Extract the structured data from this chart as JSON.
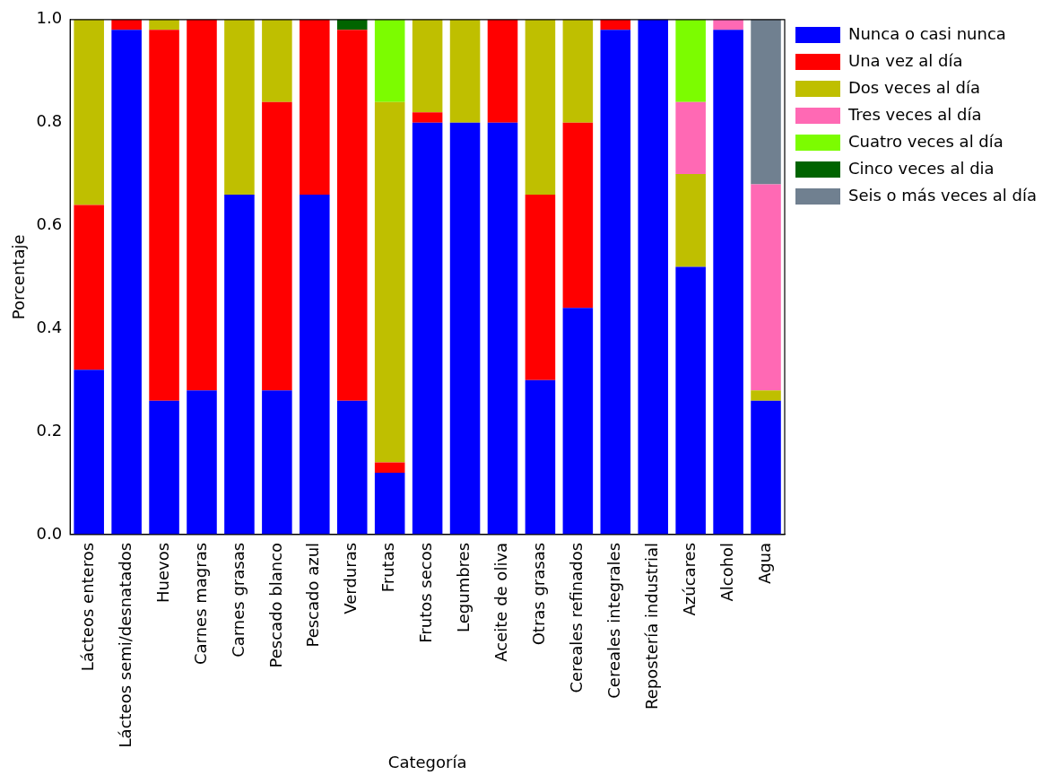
{
  "chart_data": {
    "type": "bar",
    "stacked": true,
    "xlabel": "Categoría",
    "ylabel": "Porcentaje",
    "categories": [
      "Lácteos enteros",
      "Lácteos semi/desnatados",
      "Huevos",
      "Carnes magras",
      "Carnes grasas",
      "Pescado blanco",
      "Pescado azul",
      "Verduras",
      "Frutas",
      "Frutos secos",
      "Legumbres",
      "Aceite de oliva",
      "Otras grasas",
      "Cereales refinados",
      "Cereales integrales",
      "Repostería industrial",
      "Azúcares",
      "Alcohol",
      "Agua"
    ],
    "series": [
      {
        "name": "Nunca o casi nunca",
        "color": "#0000ff",
        "values": [
          0.32,
          0.98,
          0.26,
          0.28,
          0.66,
          0.28,
          0.66,
          0.26,
          0.12,
          0.8,
          0.8,
          0.8,
          0.3,
          0.44,
          0.98,
          1.0,
          0.52,
          0.98,
          0.26
        ]
      },
      {
        "name": "Una vez al día",
        "color": "#ff0000",
        "values": [
          0.32,
          0.02,
          0.72,
          0.72,
          0,
          0.56,
          0.34,
          0.72,
          0.02,
          0.02,
          0,
          0.2,
          0.36,
          0.36,
          0.02,
          0,
          0,
          0,
          0
        ]
      },
      {
        "name": "Dos veces al día",
        "color": "#bfbf00",
        "values": [
          0.36,
          0,
          0.02,
          0,
          0.34,
          0.16,
          0,
          0,
          0.7,
          0.18,
          0.2,
          0,
          0.34,
          0.2,
          0,
          0,
          0.18,
          0,
          0.02
        ]
      },
      {
        "name": "Tres veces al día",
        "color": "#ff69b4",
        "values": [
          0,
          0,
          0,
          0,
          0,
          0,
          0,
          0,
          0,
          0,
          0,
          0,
          0,
          0,
          0,
          0,
          0.14,
          0.02,
          0.4
        ]
      },
      {
        "name": "Cuatro veces al día",
        "color": "#7cfc00",
        "values": [
          0,
          0,
          0,
          0,
          0,
          0,
          0,
          0,
          0.16,
          0,
          0,
          0,
          0,
          0,
          0,
          0,
          0.16,
          0,
          0
        ]
      },
      {
        "name": "Cinco veces al dia",
        "color": "#006400",
        "values": [
          0,
          0,
          0,
          0,
          0,
          0,
          0,
          0.02,
          0,
          0,
          0,
          0,
          0,
          0,
          0,
          0,
          0,
          0,
          0
        ]
      },
      {
        "name": "Seis o más veces al día",
        "color": "#708090",
        "values": [
          0,
          0,
          0,
          0,
          0,
          0,
          0,
          0,
          0,
          0,
          0,
          0,
          0,
          0,
          0,
          0,
          0,
          0,
          0.32
        ]
      }
    ],
    "ylim": [
      0,
      1
    ],
    "yticks": [
      {
        "value": 0,
        "label": "0.0"
      },
      {
        "value": 0.2,
        "label": "0.2"
      },
      {
        "value": 0.4,
        "label": "0.4"
      },
      {
        "value": 0.6,
        "label": "0.6"
      },
      {
        "value": 0.8,
        "label": "0.8"
      },
      {
        "value": 1,
        "label": "1.0"
      }
    ],
    "grid": false,
    "legend": "top right"
  }
}
